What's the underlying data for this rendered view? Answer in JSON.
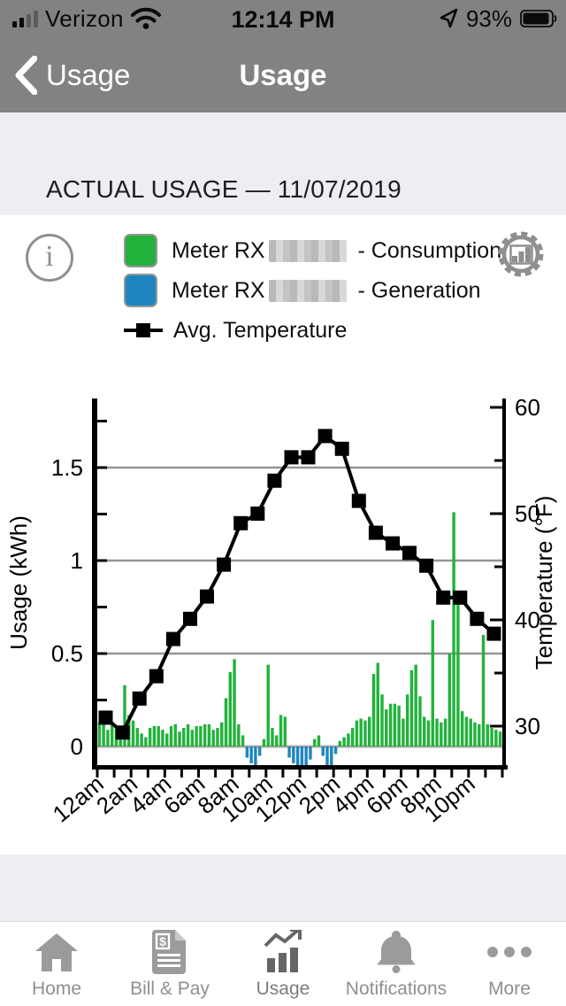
{
  "status_bar": {
    "carrier": "Verizon",
    "time": "12:14 PM",
    "battery_pct": "93%"
  },
  "nav": {
    "back_label": "Usage",
    "title": "Usage"
  },
  "section": {
    "heading": "ACTUAL USAGE — 11/07/2019"
  },
  "legend": {
    "consumption": {
      "prefix": "Meter RX",
      "suffix": " - Consumption",
      "color": "#22b23c",
      "redacted": true
    },
    "generation": {
      "prefix": "Meter RX",
      "suffix": " - Generation",
      "color": "#1d86c0",
      "redacted": true
    },
    "temperature": {
      "label": "Avg. Temperature",
      "color": "#000000"
    }
  },
  "chart_data": {
    "type": "combo-bar-line",
    "bar_interval_minutes": 15,
    "bar_series_name": "Usage (kWh)",
    "bar_positive_color": "#22b23c",
    "bar_negative_color": "#1d86c0",
    "bar_values": [
      0.13,
      0.12,
      0.09,
      0.12,
      0.1,
      0.07,
      0.33,
      0.17,
      0.14,
      0.1,
      0.07,
      0.05,
      0.1,
      0.11,
      0.11,
      0.09,
      0.07,
      0.11,
      0.12,
      0.08,
      0.1,
      0.12,
      0.09,
      0.11,
      0.11,
      0.12,
      0.12,
      0.09,
      0.1,
      0.13,
      0.26,
      0.4,
      0.47,
      0.12,
      0.06,
      -0.06,
      -0.09,
      -0.11,
      -0.05,
      0.04,
      0.44,
      0.1,
      0.06,
      0.17,
      0.16,
      -0.06,
      -0.09,
      -0.1,
      -0.11,
      -0.1,
      -0.07,
      0.04,
      0.06,
      -0.05,
      -0.11,
      -0.1,
      -0.04,
      0.03,
      0.05,
      0.07,
      0.1,
      0.14,
      0.15,
      0.14,
      0.16,
      0.39,
      0.45,
      0.28,
      0.2,
      0.23,
      0.23,
      0.22,
      0.15,
      0.28,
      0.41,
      0.44,
      0.27,
      0.16,
      0.14,
      0.68,
      0.15,
      0.13,
      0.15,
      0.5,
      1.26,
      0.82,
      0.19,
      0.16,
      0.15,
      0.13,
      0.12,
      0.6,
      0.12,
      0.1,
      0.09,
      0.08
    ],
    "line_series": {
      "name": "Avg. Temperature",
      "unit": "°F",
      "hourly_values": [
        30.8,
        29.4,
        32.6,
        34.7,
        38.2,
        40.1,
        42.2,
        45.2,
        49.1,
        50.0,
        53.1,
        55.3,
        55.3,
        57.3,
        56.1,
        51.2,
        48.2,
        47.2,
        46.3,
        45.1,
        42.1,
        42.1,
        40.1,
        38.7
      ],
      "color": "#000000"
    },
    "left_axis": {
      "label": "Usage (kWh)",
      "tick_labels": [
        "0",
        "0.5",
        "1",
        "1.5"
      ],
      "tick_values": [
        0,
        0.5,
        1,
        1.5
      ],
      "minor_step": 0.25,
      "range": [
        -0.11,
        1.87
      ]
    },
    "right_axis": {
      "label": "Temperature (°F)",
      "tick_labels": [
        "30",
        "40",
        "50",
        "60"
      ],
      "tick_values": [
        30,
        40,
        50,
        60
      ],
      "minor_step": 5,
      "range": [
        26,
        60.8
      ]
    },
    "x_axis": {
      "labels": [
        "12am",
        "2am",
        "4am",
        "6am",
        "8am",
        "10am",
        "12pm",
        "2pm",
        "4pm",
        "6pm",
        "8pm",
        "10pm"
      ],
      "hours": 24
    },
    "gridlines": [
      0.5,
      1.0,
      1.5
    ],
    "grid_color": "#949494",
    "zero_line_color": "#b3a9a9"
  },
  "tab_bar": {
    "items": [
      {
        "label": "Home",
        "icon": "home-icon",
        "active": false
      },
      {
        "label": "Bill & Pay",
        "icon": "bill-pay-icon",
        "active": false
      },
      {
        "label": "Usage",
        "icon": "usage-chart-icon",
        "active": true
      },
      {
        "label": "Notifications",
        "icon": "bell-icon",
        "active": false
      },
      {
        "label": "More",
        "icon": "more-dots-icon",
        "active": false
      }
    ]
  }
}
